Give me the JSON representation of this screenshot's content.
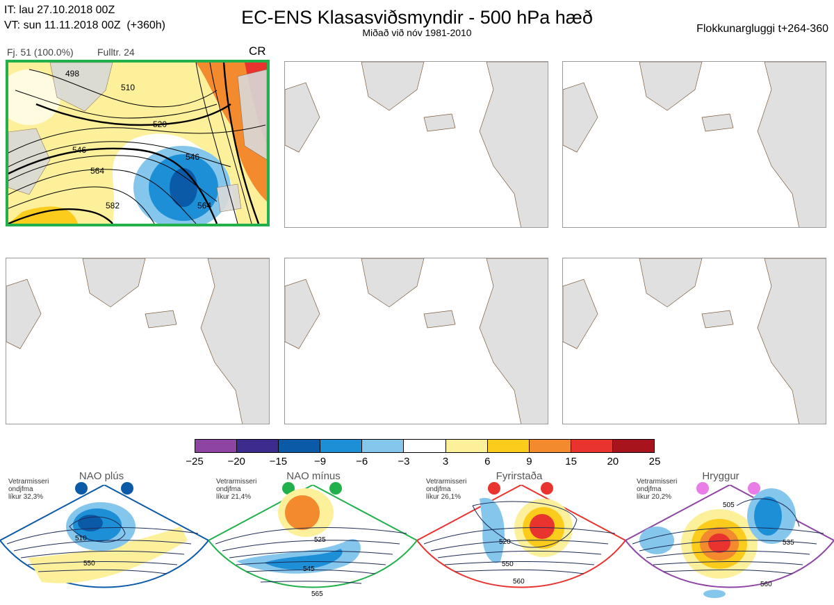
{
  "header": {
    "it_line": "IT: lau 27.10.2018 00Z",
    "vt_line": "VT: sun 11.11.2018 00Z  (+360h)",
    "title": "EC-ENS Klasasviðsmyndir - 500 hPa hæð",
    "subtitle": "Miðað við nóv 1981-2010",
    "window": "Flokkunargluggi t+264-360"
  },
  "main_panel": {
    "member_info": "Fj. 51 (100.0%)",
    "representative": "Fulltr. 24",
    "regime_code": "CR",
    "border_color": "#21b04b",
    "contour_labels": [
      "510",
      "520",
      "546",
      "546",
      "564",
      "582",
      "564",
      "498"
    ]
  },
  "colorbar": {
    "ticks": [
      "−25",
      "−20",
      "−15",
      "−9",
      "−6",
      "−3",
      "3",
      "6",
      "9",
      "15",
      "20",
      "25"
    ],
    "colors": [
      "#8e44a3",
      "#3d2b8e",
      "#0b5aa8",
      "#1c8fd6",
      "#85c6ec",
      "#ffffff",
      "#fdf09b",
      "#fccc1c",
      "#f38a2e",
      "#e8332e",
      "#a8141c"
    ]
  },
  "regimes": [
    {
      "name": "NAO plús",
      "note": "Vetrarmisseri\nondjfma\nlíkur 32,3%",
      "color": "#0b5aa8",
      "labels": [
        "510",
        "550"
      ]
    },
    {
      "name": "NAO mínus",
      "note": "Vetrarmisseri\nondjfma\nlíkur 21,4%",
      "color": "#21b04b",
      "labels": [
        "525",
        "545",
        "565"
      ]
    },
    {
      "name": "Fyrirstaða",
      "note": "Vetrarmisseri\nondjfma\nlíkur 26,1%",
      "color": "#e8332e",
      "labels": [
        "520",
        "550",
        "560"
      ]
    },
    {
      "name": "Hryggur",
      "note": "Vetrarmisseri\nondjfma\nlíkur 20,2%",
      "color": "#e97ce6",
      "labels": [
        "505",
        "535",
        "560"
      ]
    }
  ]
}
